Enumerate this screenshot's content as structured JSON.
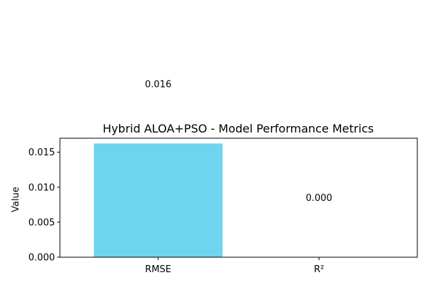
{
  "chart_data": {
    "type": "bar",
    "title": "Hybrid ALOA+PSO - Model Performance Metrics",
    "xlabel": "",
    "ylabel": "Value",
    "categories": [
      "RMSE",
      "R²"
    ],
    "values": [
      0.01625,
      0.0
    ],
    "data_labels": [
      "0.016",
      "0.000"
    ],
    "ylim": [
      0,
      0.017
    ],
    "yticks": [
      0.0,
      0.005,
      0.01,
      0.015
    ],
    "ytick_labels": [
      "0.000",
      "0.005",
      "0.010",
      "0.015"
    ],
    "bar_color": "#6DD5ED",
    "grid": false,
    "legend": "none"
  }
}
